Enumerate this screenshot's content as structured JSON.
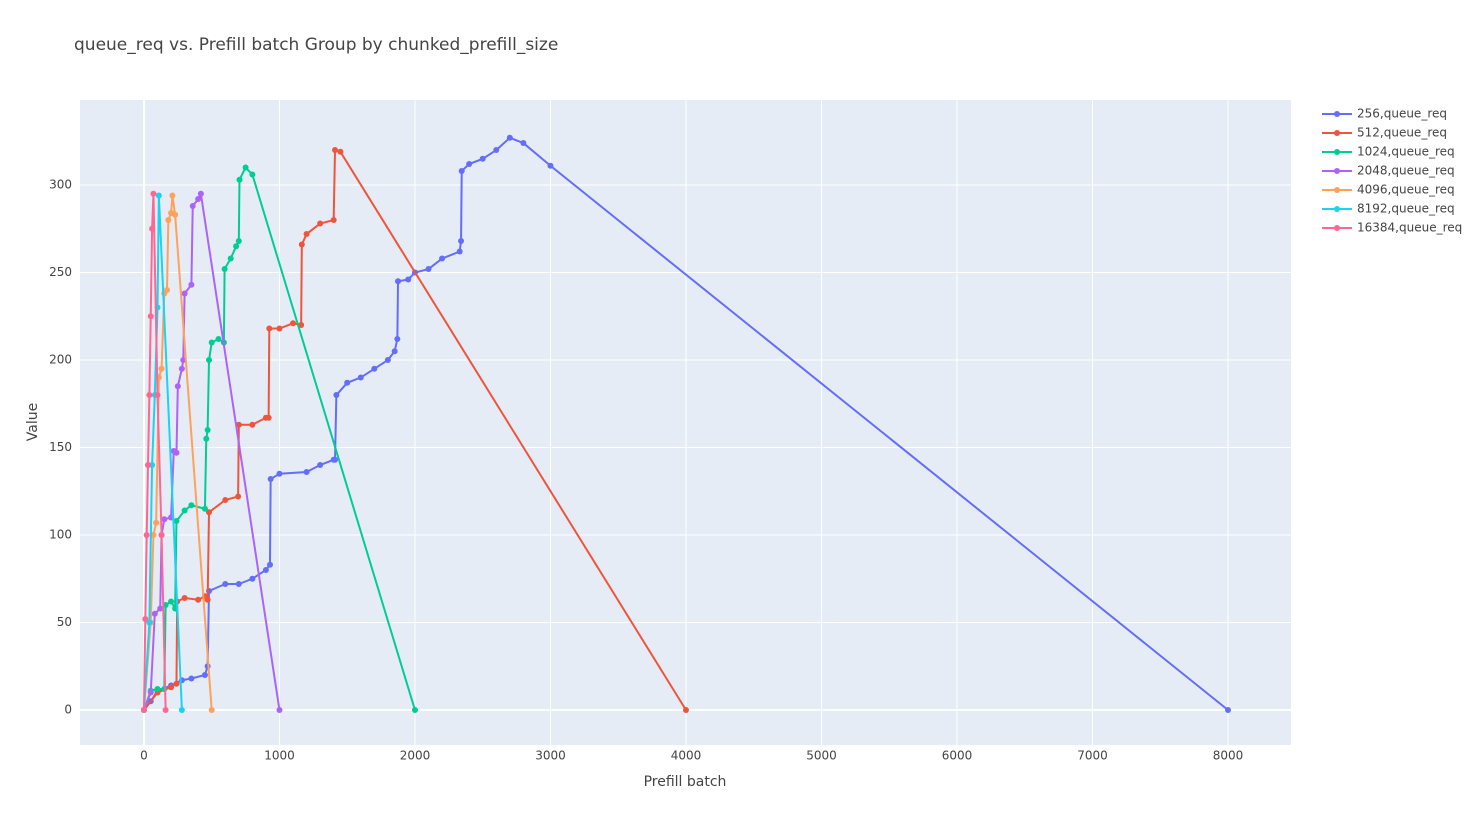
{
  "chart_data": {
    "type": "line",
    "title": "queue_req vs. Prefill batch Group by chunked_prefill_size",
    "x_label": "Prefill batch",
    "y_label": "Value",
    "xlim": [
      -472,
      8465
    ],
    "ylim": [
      -20,
      348.6
    ],
    "xticks": [
      0,
      1000,
      2000,
      3000,
      4000,
      5000,
      6000,
      7000,
      8000
    ],
    "yticks": [
      0,
      50,
      100,
      150,
      200,
      250,
      300
    ],
    "grid": true,
    "legend": "right",
    "markers": true,
    "series": [
      {
        "name": "256,queue_req",
        "color": "#636efa",
        "x": [
          0,
          50,
          100,
          200,
          280,
          350,
          450,
          470,
          480,
          600,
          700,
          800,
          900,
          930,
          935,
          1000,
          1200,
          1300,
          1400,
          1410,
          1420,
          1500,
          1600,
          1700,
          1800,
          1850,
          1870,
          1875,
          1950,
          2000,
          2100,
          2200,
          2330,
          2340,
          2345,
          2400,
          2500,
          2600,
          2700,
          2800,
          3000,
          8000
        ],
        "values": [
          0,
          5,
          11,
          14,
          17,
          18,
          20,
          25,
          68,
          72,
          72,
          75,
          80,
          83,
          132,
          135,
          136,
          140,
          143,
          143,
          180,
          187,
          190,
          195,
          200,
          205,
          212,
          245,
          246,
          250,
          252,
          258,
          262,
          268,
          308,
          312,
          315,
          320,
          327,
          324,
          311,
          0
        ]
      },
      {
        "name": "512,queue_req",
        "color": "#EF553B",
        "x": [
          0,
          100,
          200,
          240,
          245,
          300,
          400,
          450,
          470,
          480,
          600,
          695,
          700,
          800,
          900,
          920,
          925,
          1000,
          1100,
          1160,
          1165,
          1200,
          1300,
          1400,
          1410,
          1450,
          4000
        ],
        "values": [
          0,
          10,
          13,
          15,
          62,
          64,
          63,
          65,
          63,
          113,
          120,
          122,
          163,
          163,
          167,
          167,
          218,
          218,
          221,
          220,
          266,
          272,
          278,
          280,
          320,
          319,
          0
        ]
      },
      {
        "name": "1024,queue_req",
        "color": "#00cc96",
        "x": [
          0,
          50,
          100,
          150,
          160,
          200,
          230,
          240,
          300,
          350,
          450,
          460,
          470,
          480,
          500,
          550,
          590,
          595,
          640,
          680,
          700,
          705,
          750,
          800,
          2000
        ],
        "values": [
          0,
          11,
          12,
          12,
          60,
          62,
          58,
          108,
          114,
          117,
          115,
          155,
          160,
          200,
          210,
          212,
          210,
          252,
          258,
          265,
          268,
          303,
          310,
          306,
          0
        ]
      },
      {
        "name": "2048,queue_req",
        "color": "#ab63fa",
        "x": [
          0,
          50,
          80,
          120,
          130,
          150,
          200,
          220,
          240,
          250,
          280,
          290,
          300,
          350,
          360,
          400,
          420,
          1000
        ],
        "values": [
          0,
          10,
          55,
          58,
          100,
          109,
          110,
          148,
          147,
          185,
          195,
          200,
          238,
          243,
          288,
          292,
          295,
          0
        ]
      },
      {
        "name": "4096,queue_req",
        "color": "#FFA15A",
        "x": [
          0,
          50,
          70,
          90,
          110,
          130,
          150,
          170,
          180,
          200,
          210,
          230,
          500
        ],
        "values": [
          0,
          50,
          100,
          107,
          190,
          195,
          238,
          240,
          280,
          284,
          294,
          283,
          0
        ]
      },
      {
        "name": "8192,queue_req",
        "color": "#19d3f3",
        "x": [
          0,
          40,
          60,
          80,
          100,
          110,
          280
        ],
        "values": [
          0,
          50,
          140,
          180,
          230,
          294,
          0
        ]
      },
      {
        "name": "16384,queue_req",
        "color": "#FF6692",
        "x": [
          0,
          10,
          20,
          30,
          40,
          50,
          60,
          70,
          100,
          130,
          160
        ],
        "values": [
          0,
          52,
          100,
          140,
          180,
          225,
          275,
          295,
          180,
          100,
          0
        ]
      }
    ]
  }
}
